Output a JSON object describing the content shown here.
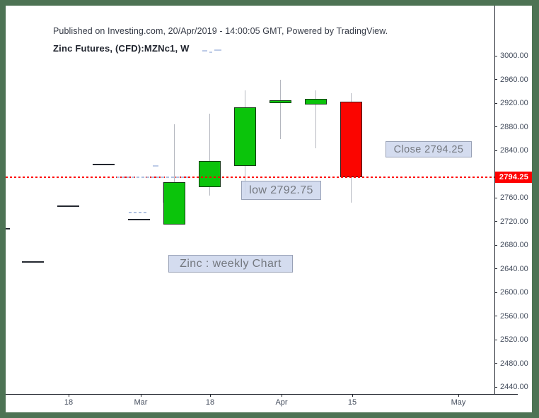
{
  "header": {
    "published_line": "Published on Investing.com, 20/Apr/2019 - 14:00:05 GMT, Powered by TradingView.",
    "title": "Zinc Futures, (CFD):MZNc1, W"
  },
  "annotations": {
    "close_label": "Close 2794.25",
    "low_label": "low 2792.75",
    "chart_label": "Zinc : weekly Chart"
  },
  "price_tag": "2794.25",
  "colors": {
    "frame": "#4d7354",
    "background": "#ffffff",
    "candle_up_fill": "#0bc40b",
    "candle_up_border": "#143a14",
    "candle_down_fill": "#fb0500",
    "candle_down_border": "#33201d",
    "wick": "#b4b7bf",
    "horizontal_line": "#fe0000",
    "price_tag_bg": "#fe0000",
    "price_tag_text": "#ffffff",
    "axis_text": "#434c5c",
    "axis_line": "#22262f",
    "annotation_bg": "#cdd6ec",
    "annotation_border": "#98a1b6",
    "annotation_text": "#74787f",
    "prior_close_mark": "#23272f",
    "faded_marks": "#afc0e0"
  },
  "chart_data": {
    "type": "candlestick",
    "title": "Zinc Futures, (CFD):MZNc1, W",
    "interval": "weekly",
    "grid": false,
    "legend_position": "none",
    "x_axis": {
      "ticks": [
        "18",
        "Mar",
        "18",
        "Apr",
        "15",
        "May"
      ]
    },
    "y_axis": {
      "tick_values": [
        3000,
        2960,
        2920,
        2880,
        2840,
        2760,
        2720,
        2680,
        2640,
        2600,
        2560,
        2520,
        2480,
        2440
      ],
      "tick_format": "0.00",
      "approx_range": [
        2420,
        3010
      ]
    },
    "candles": [
      {
        "week_of": "Mar 11",
        "open": 2715,
        "high": 2884,
        "low": 2715,
        "close": 2786,
        "direction": "up"
      },
      {
        "week_of": "Mar 18",
        "open": 2778,
        "high": 2902,
        "low": 2764,
        "close": 2822,
        "direction": "up"
      },
      {
        "week_of": "Mar 25",
        "open": 2814,
        "high": 2941,
        "low": 2764,
        "close": 2913,
        "direction": "up"
      },
      {
        "week_of": "Apr 1",
        "open": 2920,
        "high": 2959,
        "low": 2859,
        "close": 2925,
        "direction": "up"
      },
      {
        "week_of": "Apr 8",
        "open": 2918,
        "high": 2941,
        "low": 2844,
        "close": 2927,
        "direction": "up"
      },
      {
        "week_of": "Apr 15",
        "open": 2922,
        "high": 2937,
        "low": 2752,
        "close": 2794.25,
        "direction": "down"
      }
    ],
    "prior_close_marks": [
      {
        "week_of": "Feb 4",
        "price": 2708
      },
      {
        "week_of": "Feb 11",
        "price": 2651
      },
      {
        "week_of": "Feb 18",
        "price": 2746
      },
      {
        "week_of": "Feb 25",
        "price": 2816
      },
      {
        "week_of": "Mar 4",
        "price": 2723
      }
    ],
    "horizontal_line": {
      "price": 2794.25,
      "style": "dotted",
      "color": "#fe0000"
    },
    "last_price_tag": {
      "text": "2794.25"
    },
    "annotations": [
      "Close 2794.25",
      "low 2792.75",
      "Zinc : weekly Chart"
    ]
  }
}
